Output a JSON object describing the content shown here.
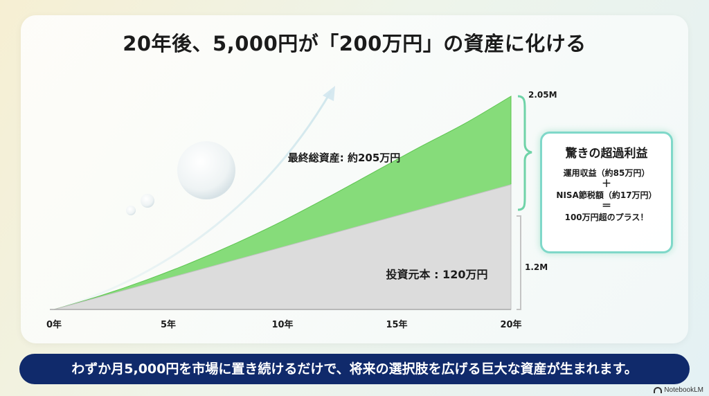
{
  "title": "20年後、5,000円が「200万円」の資産に化ける",
  "chart_data": {
    "type": "area",
    "x": [
      0,
      5,
      10,
      15,
      20
    ],
    "xticks": [
      "0年",
      "5年",
      "10年",
      "15年",
      "20年"
    ],
    "xlim": [
      0,
      20
    ],
    "ylim": [
      0,
      2.05
    ],
    "series": [
      {
        "name": "最終総資産: 約205万円",
        "x": [
          0,
          2,
          4,
          6,
          8,
          10,
          12,
          14,
          16,
          18,
          20
        ],
        "values": [
          0,
          0.13,
          0.28,
          0.45,
          0.64,
          0.85,
          1.08,
          1.32,
          1.56,
          1.79,
          2.05
        ],
        "color": "#86dc7a"
      },
      {
        "name": "投資元本 : 120万円",
        "x": [
          0,
          20
        ],
        "values": [
          0,
          1.2
        ],
        "color": "#dcdcdc"
      }
    ],
    "bracket_labels": [
      "2.05M",
      "1.2M"
    ]
  },
  "callout": {
    "title": "驚きの超過利益",
    "line1": "運用収益（約85万円）",
    "op1": "＋",
    "line2": "NISA節税額（約17万円）",
    "op2": "＝",
    "line3": "100万円超のプラス！"
  },
  "banner": "わずか月5,000円を市場に置き続けるだけで、将来の選択肢を広げる巨大な資産が生まれます。",
  "brand": "NotebookLM"
}
